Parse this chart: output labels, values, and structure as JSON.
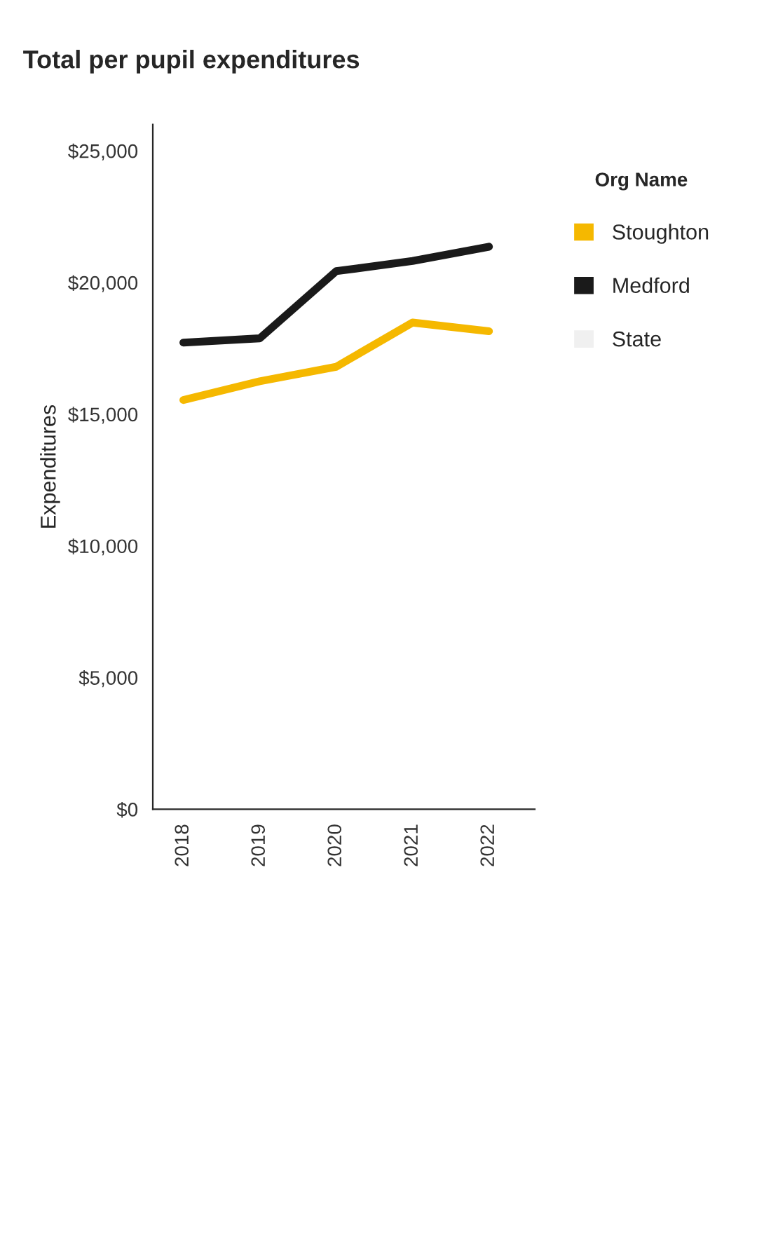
{
  "chart_data": {
    "type": "line",
    "title": "Total per pupil expenditures",
    "ylabel": "Expenditures",
    "legend_title": "Org Name",
    "x": [
      2018,
      2019,
      2020,
      2021,
      2022
    ],
    "xticks": [
      2018,
      2019,
      2020,
      2021,
      2022
    ],
    "xlim": [
      2017.6,
      2022.6
    ],
    "ylim": [
      0,
      26000
    ],
    "yticks": [
      {
        "value": 0,
        "label": "$0"
      },
      {
        "value": 5000,
        "label": "$5,000"
      },
      {
        "value": 10000,
        "label": "$10,000"
      },
      {
        "value": 15000,
        "label": "$15,000"
      },
      {
        "value": 20000,
        "label": "$20,000"
      },
      {
        "value": 25000,
        "label": "$25,000"
      }
    ],
    "series": [
      {
        "name": "Stoughton",
        "color": "#f5b800",
        "values": [
          15540,
          16250,
          16800,
          18480,
          18150
        ]
      },
      {
        "name": "Medford",
        "color": "#1a1a1a",
        "values": [
          17720,
          17880,
          20430,
          20820,
          21360
        ]
      },
      {
        "name": "State",
        "color": "#f0f0f0",
        "values": [
          null,
          null,
          null,
          null,
          null
        ]
      }
    ],
    "grid": false,
    "legend": "right",
    "marker": "none",
    "line_style": "solid"
  }
}
